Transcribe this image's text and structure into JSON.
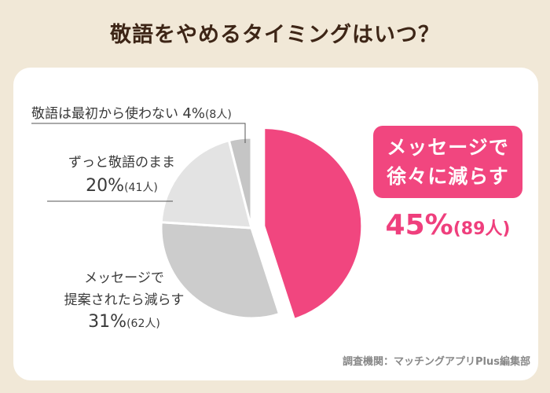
{
  "title": "敬語をやめるタイミングはいつ？",
  "chart_data": {
    "type": "pie",
    "slices": [
      {
        "label": "メッセージで徐々に減らす",
        "percent": 45,
        "count_text": "(89人)",
        "color": "#f1467f",
        "exploded": true
      },
      {
        "label": "メッセージで提案されたら減らす",
        "percent": 31,
        "count_text": "(62人)",
        "color": "#cccccc",
        "exploded": false
      },
      {
        "label": "ずっと敬語のまま",
        "percent": 20,
        "count_text": "(41人)",
        "color": "#e3e3e3",
        "exploded": false
      },
      {
        "label": "敬語は最初から使わない",
        "percent": 4,
        "count_text": "(8人)",
        "color": "#c5c5c5",
        "exploded": false
      }
    ]
  },
  "labels": {
    "slow": {
      "line1": "メッセージで",
      "line2": "徐々に減らす",
      "pct": "45%",
      "count": "(89人)"
    },
    "proposed": {
      "line1": "メッセージで",
      "line2": "提案されたら減らす",
      "pct": "31%",
      "count": "(62人)"
    },
    "keep": {
      "line1": "ずっと敬語のまま",
      "pct": "20%",
      "count": "(41人)"
    },
    "never": {
      "line1": "敬語は最初から使わない",
      "pct": "4%",
      "count": "(8人)"
    }
  },
  "source": "調査機関：マッチングアプリPlus編集部"
}
